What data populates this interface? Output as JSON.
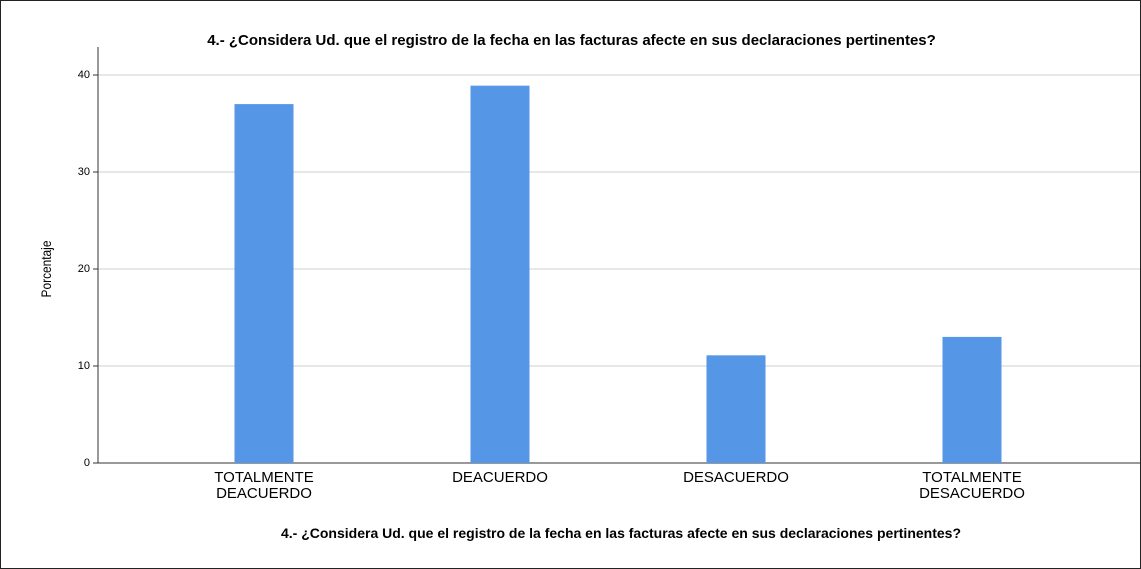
{
  "chart_data": {
    "type": "bar",
    "title": "4.- ¿Considera Ud. que el registro de la fecha en las facturas afecte en sus declaraciones pertinentes?",
    "x_label": "4.- ¿Considera Ud. que el registro de la fecha en las facturas afecte en sus declaraciones pertinentes?",
    "y_label": "Porcentaje",
    "categories": [
      "TOTALMENTE DEACUERDO",
      "DEACUERDO",
      "DESACUERDO",
      "TOTALMENTE DESACUERDO"
    ],
    "values": [
      37.0,
      38.9,
      11.1,
      13.0
    ],
    "color": "#5596e6",
    "ylim": [
      0,
      40
    ],
    "yticks": [
      0,
      10,
      20,
      30,
      40
    ],
    "grid": true
  }
}
